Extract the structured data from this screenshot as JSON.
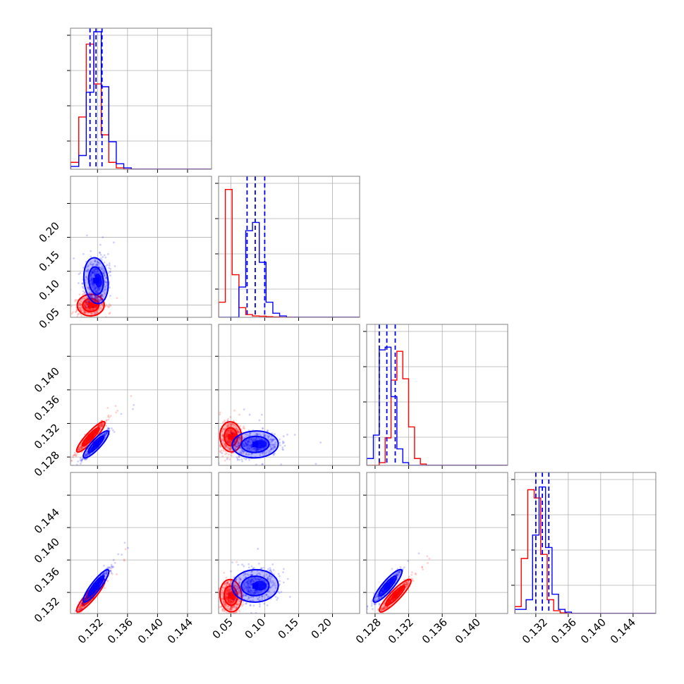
{
  "chart_data": {
    "type": "scatter",
    "layout": "corner-plot",
    "grid": true,
    "colors": {
      "red_series": "#ff0000",
      "blue_series": "#0000ff",
      "grid": "#b0b0b0",
      "frame": "#808080"
    },
    "parameters": [
      {
        "range": [
          0.1284,
          0.1472
        ],
        "ticks": [
          "0.132",
          "0.136",
          "0.140",
          "0.144"
        ],
        "tick_values": [
          0.132,
          0.136,
          0.14,
          0.144
        ]
      },
      {
        "range": [
          0.032,
          0.24
        ],
        "ticks": [
          "0.05",
          "0.10",
          "0.15",
          "0.20"
        ],
        "tick_values": [
          0.05,
          0.1,
          0.15,
          0.2
        ]
      },
      {
        "range": [
          0.127,
          0.1438
        ],
        "ticks": [
          "0.128",
          "0.132",
          "0.136",
          "0.140"
        ],
        "tick_values": [
          0.128,
          0.132,
          0.136,
          0.14
        ]
      },
      {
        "range": [
          0.1294,
          0.1468
        ],
        "ticks": [
          "0.132",
          "0.136",
          "0.140",
          "0.144"
        ],
        "tick_values": [
          0.132,
          0.136,
          0.14,
          0.144
        ]
      }
    ],
    "y_tick_labels": {
      "row1": [
        "0.05",
        "0.10",
        "0.15",
        "0.20"
      ],
      "row2": [
        "0.128",
        "0.132",
        "0.136",
        "0.140"
      ],
      "row3": [
        "0.132",
        "0.136",
        "0.140",
        "0.144"
      ]
    },
    "x_tick_labels": {
      "col0": [
        "0.132",
        "0.136",
        "0.140",
        "0.144"
      ],
      "col1": [
        "0.05",
        "0.10",
        "0.15",
        "0.20"
      ],
      "col2": [
        "0.128",
        "0.132",
        "0.136",
        "0.140"
      ],
      "col3": [
        "0.132",
        "0.136",
        "0.140",
        "0.144"
      ]
    },
    "histograms": [
      {
        "param": 0,
        "red": {
          "edges": [
            0.1284,
            0.1295,
            0.1305,
            0.1315,
            0.1325,
            0.1335,
            0.1345,
            0.1355,
            0.1472
          ],
          "counts": [
            0.05,
            0.38,
            0.91,
            0.62,
            0.25,
            0.05,
            0.01,
            0
          ]
        },
        "blue": {
          "edges": [
            0.1284,
            0.1295,
            0.1305,
            0.1315,
            0.1325,
            0.1335,
            0.1345,
            0.1355,
            0.1365,
            0.1472
          ],
          "counts": [
            0.02,
            0.1,
            0.56,
            1.0,
            0.6,
            0.2,
            0.04,
            0.01,
            0
          ]
        },
        "quantile_lines": [
          0.131,
          0.1318,
          0.1326
        ]
      },
      {
        "param": 1,
        "red": {
          "edges": [
            0.032,
            0.042,
            0.052,
            0.062,
            0.072,
            0.082,
            0.092,
            0.102,
            0.112,
            0.122,
            0.24
          ],
          "counts": [
            0.11,
            0.93,
            0.31,
            0.07,
            0.02,
            0.01,
            0.008,
            0.005,
            0.002,
            0
          ]
        },
        "blue": {
          "edges": [
            0.032,
            0.062,
            0.072,
            0.082,
            0.092,
            0.102,
            0.112,
            0.122,
            0.132,
            0.24
          ],
          "counts": [
            0,
            0.22,
            0.63,
            0.69,
            0.4,
            0.11,
            0.03,
            0.01,
            0
          ]
        },
        "quantile_lines": [
          0.074,
          0.086,
          0.1
        ]
      },
      {
        "param": 2,
        "red": {
          "edges": [
            0.127,
            0.1285,
            0.1292,
            0.1299,
            0.1306,
            0.1313,
            0.132,
            0.1327,
            0.1334,
            0.1341,
            0.1438
          ],
          "counts": [
            0,
            0.02,
            0.2,
            0.62,
            0.83,
            0.63,
            0.28,
            0.05,
            0.01,
            0
          ]
        },
        "blue": {
          "edges": [
            0.127,
            0.1278,
            0.1285,
            0.1292,
            0.1299,
            0.1306,
            0.1313,
            0.132,
            0.1438
          ],
          "counts": [
            0.05,
            0.22,
            0.84,
            0.86,
            0.5,
            0.12,
            0.02,
            0
          ]
        },
        "quantile_lines": [
          0.1285,
          0.1294,
          0.1304
        ]
      },
      {
        "param": 3,
        "red": {
          "edges": [
            0.1294,
            0.1302,
            0.131,
            0.1318,
            0.1326,
            0.1334,
            0.1342,
            0.135,
            0.1358,
            0.1468
          ],
          "counts": [
            0.05,
            0.4,
            0.9,
            0.84,
            0.43,
            0.1,
            0.02,
            0.005,
            0
          ]
        },
        "blue": {
          "edges": [
            0.1294,
            0.1308,
            0.1316,
            0.1324,
            0.1332,
            0.134,
            0.1348,
            0.1356,
            0.1364,
            0.1468
          ],
          "counts": [
            0.03,
            0.1,
            0.57,
            0.92,
            0.48,
            0.14,
            0.03,
            0.01,
            0
          ]
        },
        "quantile_lines": [
          0.132,
          0.1328,
          0.1336
        ]
      }
    ],
    "series": [
      {
        "color": "#ff0000",
        "mean": [
          0.1311,
          0.05,
          0.1304,
          0.1316
        ],
        "std": [
          0.0009,
          0.008,
          0.0009,
          0.001
        ],
        "tilt": 0.97
      },
      {
        "color": "#0000ff",
        "mean": [
          0.1318,
          0.086,
          0.1295,
          0.1328
        ],
        "std": [
          0.0008,
          0.017,
          0.0008,
          0.001
        ],
        "tilt": 0.96
      }
    ]
  }
}
